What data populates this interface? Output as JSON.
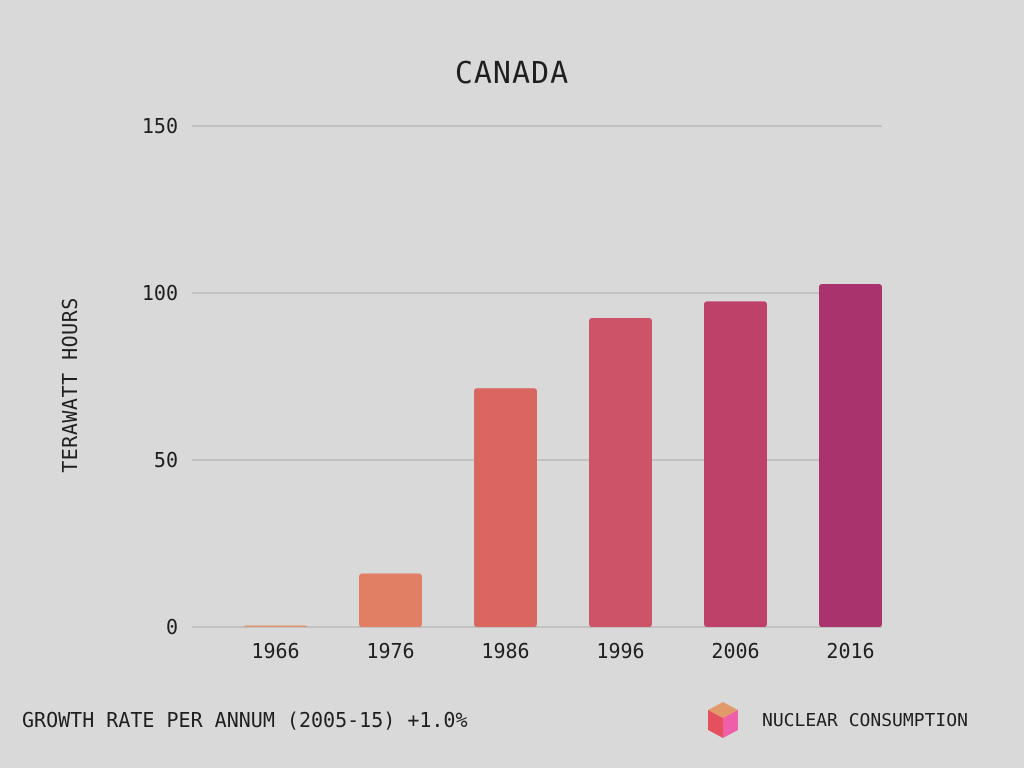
{
  "chart_data": {
    "type": "bar",
    "title": "CANADA",
    "xlabel": "",
    "ylabel": "TERAWATT HOURS",
    "categories": [
      "1966",
      "1976",
      "1986",
      "1996",
      "2006",
      "2016"
    ],
    "series": [
      {
        "name": "NUCLEAR CONSUMPTION",
        "values": [
          0.3,
          16,
          71.5,
          92.5,
          97.5,
          102.7
        ]
      }
    ],
    "bar_colors": [
      "#e0956d",
      "#e07f63",
      "#d9675f",
      "#cc5368",
      "#bd4169",
      "#a8336d"
    ],
    "ylim": [
      0,
      150
    ],
    "yticks": [
      0,
      50,
      100,
      150
    ],
    "grid": true,
    "legend_position": "bottom-right"
  },
  "footer": {
    "growth_note": "GROWTH RATE PER ANNUM (2005-15) +1.0%"
  },
  "legend": {
    "icon": "cube-icon",
    "label": "NUCLEAR CONSUMPTION"
  },
  "colors": {
    "background": "#d9d9d9",
    "gridline": "#a9a9a9",
    "text": "#1f1f1f"
  }
}
